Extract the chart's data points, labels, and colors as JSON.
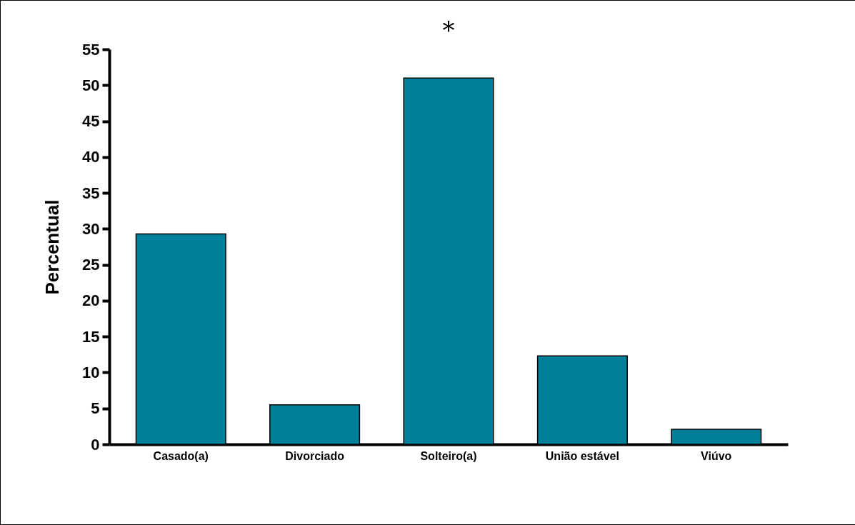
{
  "chart_data": {
    "type": "bar",
    "ylabel": "Percentual",
    "categories": [
      "Casado(a)",
      "Divorciado",
      "Solteiro(a)",
      "União estável",
      "Viúvo"
    ],
    "values": [
      29.3,
      5.5,
      51.0,
      12.3,
      2.1
    ],
    "color": "#007f9b",
    "ylim": [
      0,
      55
    ],
    "yticks": [
      0,
      5,
      10,
      15,
      20,
      25,
      30,
      35,
      40,
      45,
      50,
      55
    ],
    "grid": false,
    "annotations": [
      "*"
    ]
  }
}
